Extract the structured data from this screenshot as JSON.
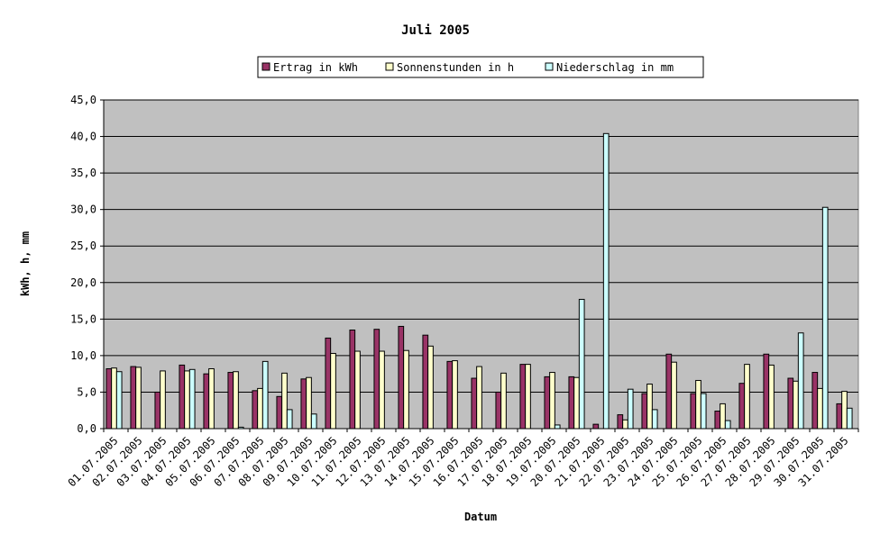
{
  "chart_data": {
    "type": "bar",
    "title": "Juli 2005",
    "xlabel": "Datum",
    "ylabel": "kWh, h, mm",
    "ylim": [
      0,
      45
    ],
    "ytick_step": 5,
    "ytick_labels": [
      "0,0",
      "5,0",
      "10,0",
      "15,0",
      "20,0",
      "25,0",
      "30,0",
      "35,0",
      "40,0",
      "45,0"
    ],
    "grid": true,
    "legend_position": "top",
    "plot_background": "#c0c0c0",
    "categories": [
      "01.07.2005",
      "02.07.2005",
      "03.07.2005",
      "04.07.2005",
      "05.07.2005",
      "06.07.2005",
      "07.07.2005",
      "08.07.2005",
      "09.07.2005",
      "10.07.2005",
      "11.07.2005",
      "12.07.2005",
      "13.07.2005",
      "14.07.2005",
      "15.07.2005",
      "16.07.2005",
      "17.07.2005",
      "18.07.2005",
      "19.07.2005",
      "20.07.2005",
      "21.07.2005",
      "22.07.2005",
      "23.07.2005",
      "24.07.2005",
      "25.07.2005",
      "26.07.2005",
      "27.07.2005",
      "28.07.2005",
      "29.07.2005",
      "30.07.2005",
      "31.07.2005"
    ],
    "series": [
      {
        "name": "Ertrag in kWh",
        "color": "#993366",
        "values": [
          8.2,
          8.5,
          5.0,
          8.7,
          7.5,
          7.7,
          5.2,
          4.4,
          6.8,
          12.4,
          13.5,
          13.6,
          14.0,
          12.8,
          9.2,
          6.9,
          5.0,
          8.8,
          7.1,
          7.1,
          0.6,
          1.9,
          4.8,
          10.2,
          4.8,
          2.4,
          6.2,
          10.2,
          6.9,
          7.7,
          3.4
        ]
      },
      {
        "name": "Sonnenstunden in h",
        "color": "#ffffcc",
        "values": [
          8.3,
          8.4,
          7.9,
          7.9,
          8.2,
          7.8,
          5.5,
          7.6,
          7.0,
          10.3,
          10.6,
          10.6,
          10.7,
          11.3,
          9.3,
          8.5,
          7.6,
          8.8,
          7.7,
          7.0,
          0.0,
          1.2,
          6.1,
          9.1,
          6.6,
          3.4,
          8.8,
          8.7,
          6.5,
          5.5,
          5.1
        ]
      },
      {
        "name": "Niederschlag in mm",
        "color": "#ccffff",
        "values": [
          7.8,
          0.0,
          0.0,
          8.1,
          0.0,
          0.2,
          9.2,
          2.6,
          2.0,
          0.0,
          0.0,
          0.0,
          0.0,
          0.0,
          0.0,
          0.0,
          0.0,
          0.0,
          0.5,
          17.7,
          40.4,
          5.4,
          2.6,
          0.0,
          4.8,
          1.1,
          0.0,
          0.0,
          13.1,
          30.3,
          2.8
        ]
      }
    ]
  }
}
